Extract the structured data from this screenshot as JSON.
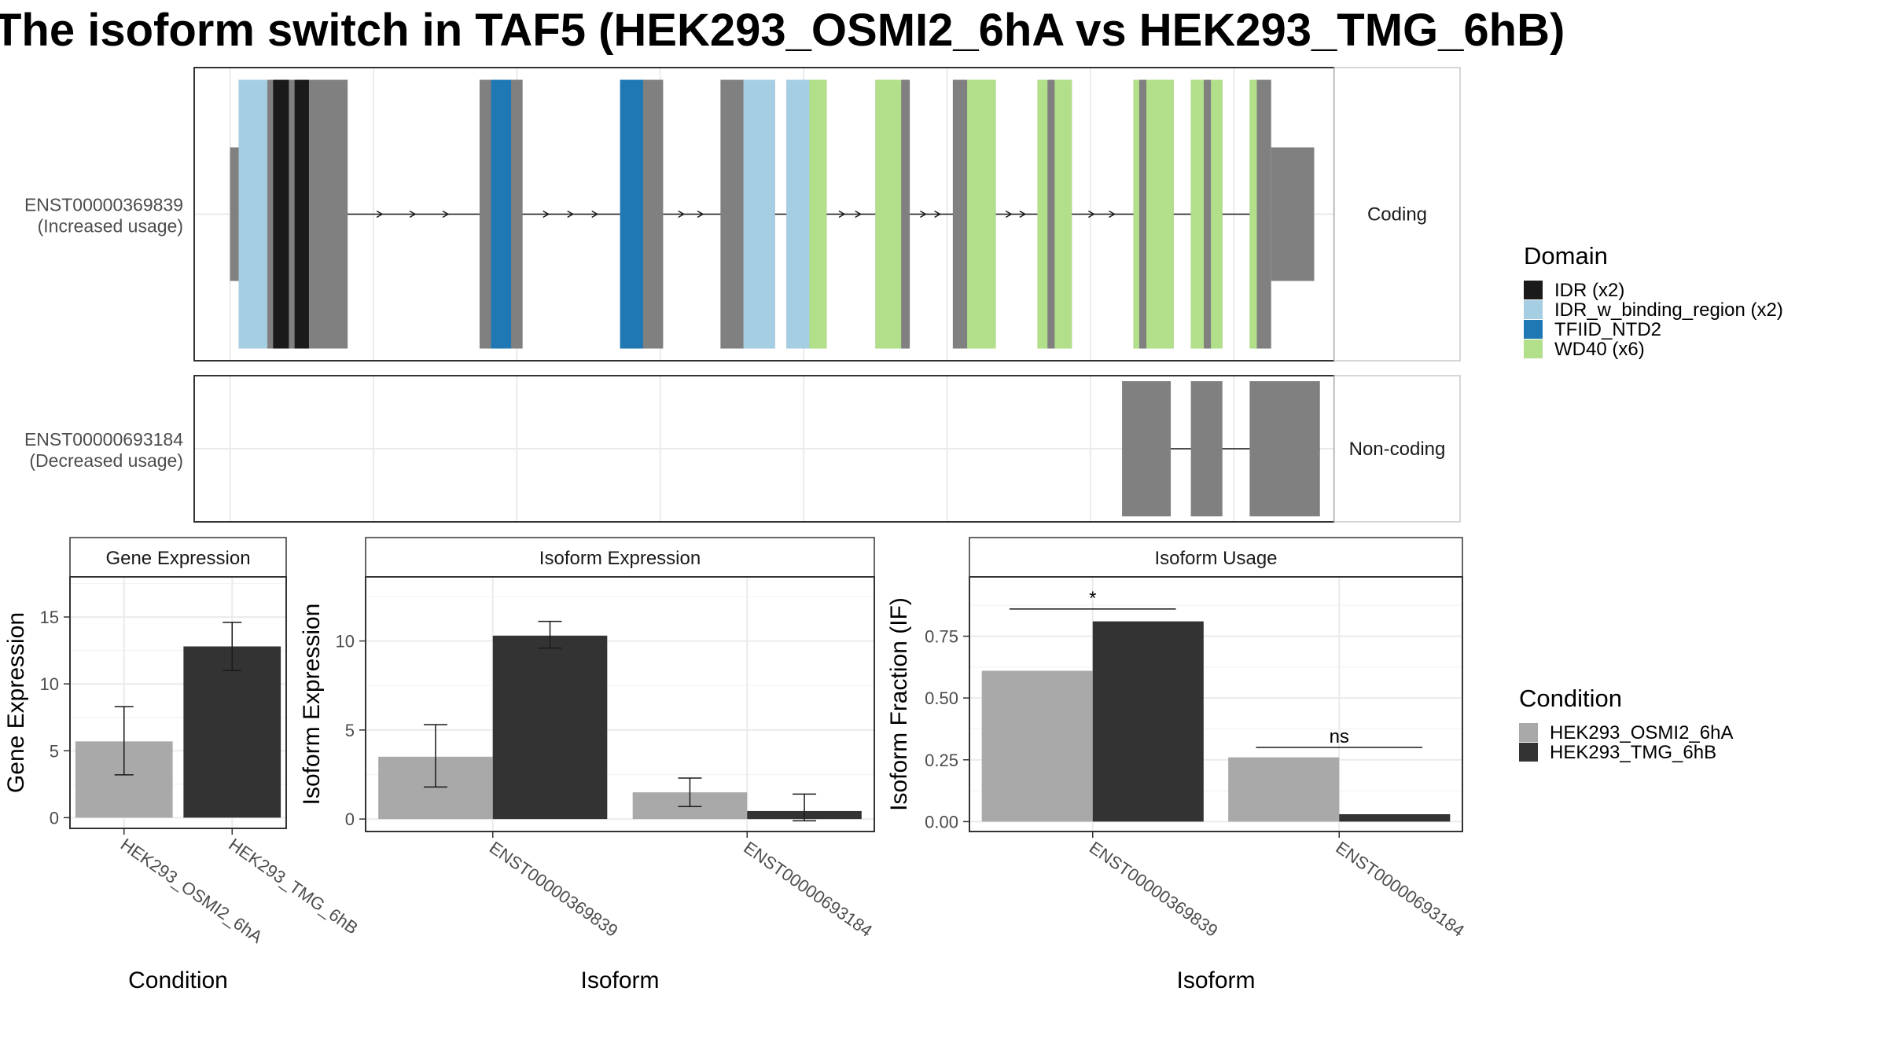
{
  "title": "The isoform switch in TAF5 (HEK293_OSMI2_6hA vs HEK293_TMG_6hB)",
  "colors": {
    "IDR": "#1a1a1a",
    "IDR_w_binding_region": "#a6cee3",
    "TFIID_NTD2": "#1f78b4",
    "WD40": "#b2df8a",
    "non_domain_exon": "#808080",
    "HEK293_OSMI2_6hA": "#a9a9a9",
    "HEK293_TMG_6hB": "#333333"
  },
  "structure": {
    "tracks": [
      {
        "id": "ENST00000369839",
        "label": "ENST00000369839",
        "usage": "(Increased usage)",
        "strip": "Coding",
        "exons": [
          {
            "start": 0.0,
            "end": 0.06,
            "type": "utr"
          },
          {
            "start": 0.06,
            "end": 0.82,
            "type": "cds",
            "domain": "mixed"
          },
          {
            "start": 1.74,
            "end": 2.04,
            "type": "cds",
            "domain": "TFIID_NTD2"
          },
          {
            "start": 2.72,
            "end": 3.02,
            "type": "cds",
            "domain": "TFIID_NTD2"
          },
          {
            "start": 3.42,
            "end": 3.8,
            "type": "cds",
            "domain": "IDR_w_binding_region"
          },
          {
            "start": 3.88,
            "end": 4.16,
            "type": "cds",
            "domain": "IDR_w_binding_region"
          },
          {
            "start": 4.5,
            "end": 4.74,
            "type": "cds",
            "domain": "WD40"
          },
          {
            "start": 5.04,
            "end": 5.34,
            "type": "cds",
            "domain": "WD40"
          },
          {
            "start": 5.63,
            "end": 5.87,
            "type": "cds",
            "domain": "WD40"
          },
          {
            "start": 6.3,
            "end": 6.58,
            "type": "cds",
            "domain": "WD40"
          },
          {
            "start": 6.7,
            "end": 6.92,
            "type": "cds",
            "domain": "WD40"
          },
          {
            "start": 7.11,
            "end": 7.26,
            "type": "cds",
            "domain": "WD40"
          },
          {
            "start": 7.26,
            "end": 7.56,
            "type": "utr"
          }
        ],
        "domain_segments": [
          {
            "start": 0.06,
            "end": 0.26,
            "domain": "IDR_w_binding_region"
          },
          {
            "start": 0.3,
            "end": 0.41,
            "domain": "IDR"
          },
          {
            "start": 0.45,
            "end": 0.55,
            "domain": "IDR"
          },
          {
            "start": 1.82,
            "end": 1.96,
            "domain": "TFIID_NTD2"
          },
          {
            "start": 2.72,
            "end": 2.88,
            "domain": "TFIID_NTD2"
          },
          {
            "start": 3.58,
            "end": 3.8,
            "domain": "IDR_w_binding_region"
          },
          {
            "start": 3.88,
            "end": 4.04,
            "domain": "IDR_w_binding_region"
          },
          {
            "start": 4.04,
            "end": 4.16,
            "domain": "WD40"
          },
          {
            "start": 4.5,
            "end": 4.68,
            "domain": "WD40"
          },
          {
            "start": 5.14,
            "end": 5.34,
            "domain": "WD40"
          },
          {
            "start": 5.63,
            "end": 5.7,
            "domain": "WD40"
          },
          {
            "start": 5.75,
            "end": 5.87,
            "domain": "WD40"
          },
          {
            "start": 6.3,
            "end": 6.34,
            "domain": "WD40"
          },
          {
            "start": 6.39,
            "end": 6.58,
            "domain": "WD40"
          },
          {
            "start": 6.7,
            "end": 6.79,
            "domain": "WD40"
          },
          {
            "start": 6.84,
            "end": 6.92,
            "domain": "WD40"
          },
          {
            "start": 7.11,
            "end": 7.16,
            "domain": "WD40"
          }
        ]
      },
      {
        "id": "ENST00000693184",
        "label": "ENST00000693184",
        "usage": "(Decreased usage)",
        "strip": "Non-coding",
        "exons": [
          {
            "start": 6.22,
            "end": 6.56,
            "type": "nc"
          },
          {
            "start": 6.7,
            "end": 6.92,
            "type": "nc"
          },
          {
            "start": 7.11,
            "end": 7.6,
            "type": "nc"
          }
        ],
        "domain_segments": []
      }
    ],
    "x_range": [
      -0.25,
      7.7
    ],
    "gridlines": [
      0,
      1,
      2,
      3,
      4,
      5,
      6,
      7
    ]
  },
  "domain_legend": {
    "title": "Domain",
    "items": [
      {
        "label": "IDR (x2)",
        "key": "IDR"
      },
      {
        "label": "IDR_w_binding_region (x2)",
        "key": "IDR_w_binding_region"
      },
      {
        "label": "TFIID_NTD2",
        "key": "TFIID_NTD2"
      },
      {
        "label": "WD40 (x6)",
        "key": "WD40"
      }
    ]
  },
  "condition_legend": {
    "title": "Condition",
    "items": [
      {
        "label": "HEK293_OSMI2_6hA",
        "key": "HEK293_OSMI2_6hA"
      },
      {
        "label": "HEK293_TMG_6hB",
        "key": "HEK293_TMG_6hB"
      }
    ]
  },
  "chart_data": [
    {
      "type": "bar",
      "title": "Gene Expression",
      "xlabel": "Condition",
      "ylabel": "Gene Expression",
      "categories": [
        "HEK293_OSMI2_6hA",
        "HEK293_TMG_6hB"
      ],
      "values": [
        5.7,
        12.8
      ],
      "error_low": [
        3.2,
        11.0
      ],
      "error_high": [
        8.3,
        14.6
      ],
      "ylim": [
        -0.8,
        18.0
      ],
      "yticks": [
        0,
        5,
        10,
        15
      ],
      "grid": true
    },
    {
      "type": "bar",
      "title": "Isoform Expression",
      "xlabel": "Isoform",
      "ylabel": "Isoform Expression",
      "categories": [
        "ENST00000369839",
        "ENST00000693184"
      ],
      "series": [
        {
          "name": "HEK293_OSMI2_6hA",
          "values": [
            3.5,
            1.5
          ],
          "error_low": [
            1.8,
            0.7
          ],
          "error_high": [
            5.3,
            2.3
          ]
        },
        {
          "name": "HEK293_TMG_6hB",
          "values": [
            10.3,
            0.45
          ],
          "error_low": [
            9.6,
            -0.1
          ],
          "error_high": [
            11.1,
            1.4
          ]
        }
      ],
      "ylim": [
        -0.7,
        13.6
      ],
      "yticks": [
        0,
        5,
        10
      ],
      "grid": true
    },
    {
      "type": "bar",
      "title": "Isoform Usage",
      "xlabel": "Isoform",
      "ylabel": "Isoform Fraction (IF)",
      "categories": [
        "ENST00000369839",
        "ENST00000693184"
      ],
      "series": [
        {
          "name": "HEK293_OSMI2_6hA",
          "values": [
            0.61,
            0.26
          ]
        },
        {
          "name": "HEK293_TMG_6hB",
          "values": [
            0.81,
            0.03
          ]
        }
      ],
      "significance": [
        {
          "category": "ENST00000369839",
          "label": "*",
          "y": 0.86
        },
        {
          "category": "ENST00000693184",
          "label": "ns",
          "y": 0.3
        }
      ],
      "ylim": [
        -0.04,
        0.99
      ],
      "yticks": [
        0.0,
        0.25,
        0.5,
        0.75
      ],
      "ytick_labels": [
        "0.00",
        "0.25",
        "0.50",
        "0.75"
      ],
      "grid": true
    }
  ]
}
